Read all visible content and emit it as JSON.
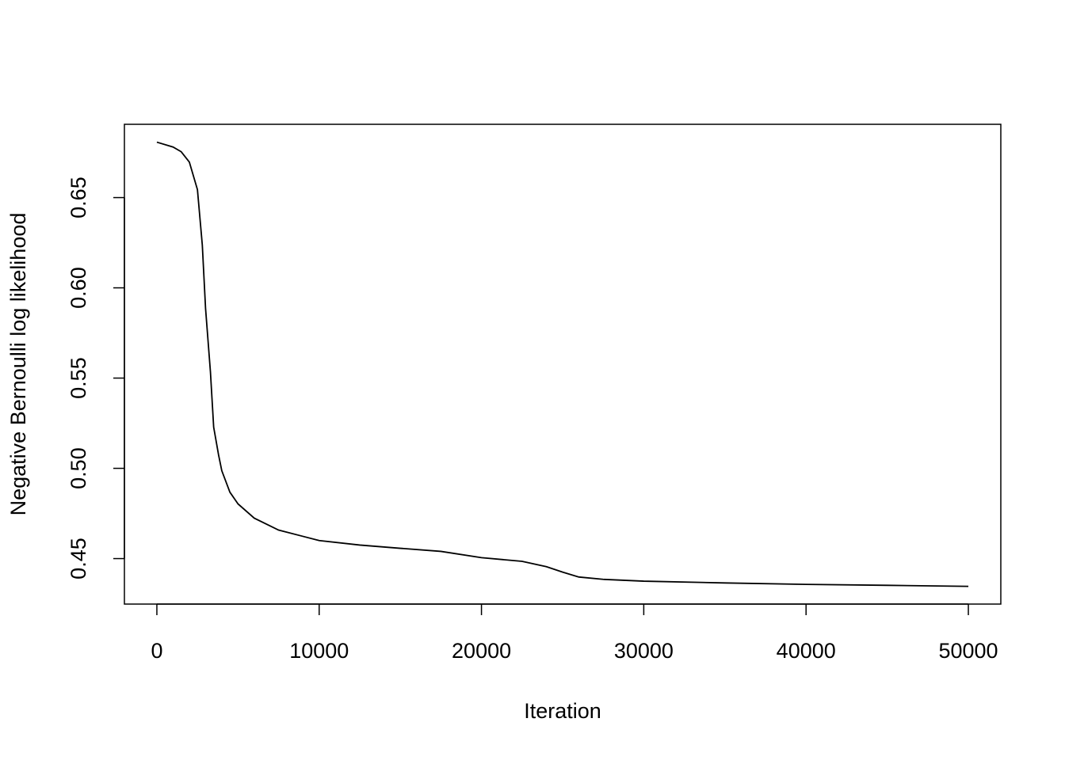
{
  "chart_data": {
    "type": "line",
    "x_label": "Iteration",
    "y_label": "Negative Bernoulli log likelihood",
    "x": [
      0,
      1000,
      1500,
      2000,
      2500,
      2800,
      3000,
      3300,
      3500,
      3800,
      4000,
      4500,
      5000,
      6000,
      7500,
      10000,
      12500,
      15000,
      17500,
      20000,
      22500,
      24000,
      25000,
      26000,
      27500,
      30000,
      35000,
      40000,
      45000,
      50000
    ],
    "series": [
      {
        "color": "#000000",
        "values": [
          0.6807,
          0.678,
          0.6754,
          0.6697,
          0.6544,
          0.6237,
          0.5886,
          0.5535,
          0.5228,
          0.5075,
          0.4987,
          0.4868,
          0.4803,
          0.4724,
          0.4658,
          0.46,
          0.4575,
          0.4557,
          0.454,
          0.4505,
          0.4485,
          0.4455,
          0.4425,
          0.4398,
          0.4385,
          0.4375,
          0.4365,
          0.4357,
          0.4352,
          0.4346
        ]
      }
    ],
    "xlim": [
      -2000,
      52000
    ],
    "ylim": [
      0.4248,
      0.6906
    ],
    "xticks": [
      0,
      10000,
      20000,
      30000,
      40000,
      50000
    ],
    "yticks": [
      0.45,
      {
        "value": 0.5,
        "label": "0.50"
      },
      0.55,
      {
        "value": 0.6,
        "label": "0.60"
      },
      0.65
    ]
  }
}
